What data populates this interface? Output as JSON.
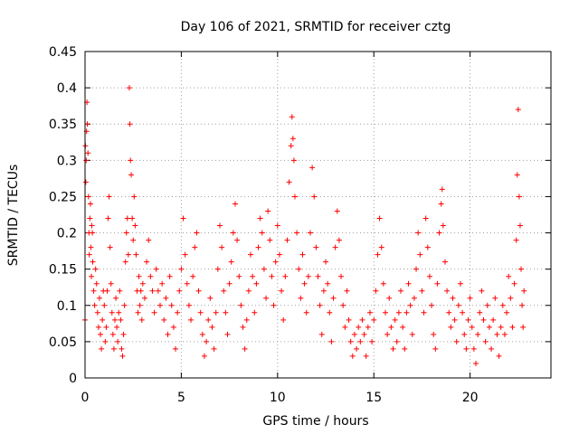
{
  "chart_data": {
    "type": "scatter",
    "title": "Day 106 of 2021, SRMTID for receiver cztg",
    "xlabel": "GPS time / hours",
    "ylabel": "SRMTID / TECUs",
    "xlim": [
      0,
      24.2
    ],
    "ylim": [
      0,
      0.45
    ],
    "xticks": [
      0,
      5,
      10,
      15,
      20
    ],
    "yticks": [
      0,
      0.05,
      0.1,
      0.15,
      0.2,
      0.25,
      0.3,
      0.35,
      0.4,
      0.45
    ],
    "xtick_labels": [
      "0",
      "5",
      "10",
      "15",
      "20"
    ],
    "ytick_labels": [
      "0",
      "0.05",
      "0.1",
      "0.15",
      "0.2",
      "0.25",
      "0.3",
      "0.35",
      "0.4",
      "0.45"
    ],
    "grid": true,
    "marker": "+",
    "color": "#ff0000",
    "series": [
      {
        "name": "SRMTID",
        "points": [
          [
            0.0,
            0.08
          ],
          [
            0.02,
            0.32
          ],
          [
            0.04,
            0.27
          ],
          [
            0.06,
            0.3
          ],
          [
            0.08,
            0.34
          ],
          [
            0.1,
            0.38
          ],
          [
            0.12,
            0.35
          ],
          [
            0.15,
            0.31
          ],
          [
            0.18,
            0.25
          ],
          [
            0.2,
            0.2
          ],
          [
            0.22,
            0.17
          ],
          [
            0.25,
            0.22
          ],
          [
            0.28,
            0.24
          ],
          [
            0.3,
            0.18
          ],
          [
            0.33,
            0.14
          ],
          [
            0.35,
            0.21
          ],
          [
            0.38,
            0.2
          ],
          [
            0.4,
            0.16
          ],
          [
            0.45,
            0.12
          ],
          [
            0.5,
            0.1
          ],
          [
            0.55,
            0.15
          ],
          [
            0.6,
            0.13
          ],
          [
            0.65,
            0.09
          ],
          [
            0.7,
            0.07
          ],
          [
            0.75,
            0.11
          ],
          [
            0.8,
            0.06
          ],
          [
            0.85,
            0.04
          ],
          [
            0.9,
            0.08
          ],
          [
            0.95,
            0.12
          ],
          [
            1.0,
            0.1
          ],
          [
            1.05,
            0.05
          ],
          [
            1.1,
            0.07
          ],
          [
            1.15,
            0.12
          ],
          [
            1.2,
            0.22
          ],
          [
            1.25,
            0.25
          ],
          [
            1.3,
            0.18
          ],
          [
            1.35,
            0.13
          ],
          [
            1.4,
            0.09
          ],
          [
            1.45,
            0.06
          ],
          [
            1.5,
            0.04
          ],
          [
            1.55,
            0.08
          ],
          [
            1.6,
            0.11
          ],
          [
            1.65,
            0.07
          ],
          [
            1.7,
            0.05
          ],
          [
            1.75,
            0.09
          ],
          [
            1.8,
            0.12
          ],
          [
            1.85,
            0.08
          ],
          [
            1.9,
            0.04
          ],
          [
            1.95,
            0.03
          ],
          [
            2.0,
            0.06
          ],
          [
            2.05,
            0.1
          ],
          [
            2.1,
            0.16
          ],
          [
            2.15,
            0.2
          ],
          [
            2.2,
            0.22
          ],
          [
            2.25,
            0.17
          ],
          [
            2.3,
            0.4
          ],
          [
            2.33,
            0.35
          ],
          [
            2.36,
            0.3
          ],
          [
            2.4,
            0.28
          ],
          [
            2.45,
            0.22
          ],
          [
            2.5,
            0.19
          ],
          [
            2.55,
            0.25
          ],
          [
            2.6,
            0.21
          ],
          [
            2.65,
            0.17
          ],
          [
            2.7,
            0.12
          ],
          [
            2.75,
            0.09
          ],
          [
            2.8,
            0.14
          ],
          [
            2.85,
            0.1
          ],
          [
            2.9,
            0.12
          ],
          [
            2.95,
            0.08
          ],
          [
            3.0,
            0.13
          ],
          [
            3.1,
            0.11
          ],
          [
            3.2,
            0.16
          ],
          [
            3.3,
            0.19
          ],
          [
            3.4,
            0.14
          ],
          [
            3.5,
            0.12
          ],
          [
            3.6,
            0.09
          ],
          [
            3.7,
            0.15
          ],
          [
            3.8,
            0.12
          ],
          [
            3.9,
            0.1
          ],
          [
            4.0,
            0.13
          ],
          [
            4.1,
            0.08
          ],
          [
            4.2,
            0.11
          ],
          [
            4.3,
            0.06
          ],
          [
            4.4,
            0.14
          ],
          [
            4.5,
            0.1
          ],
          [
            4.6,
            0.07
          ],
          [
            4.7,
            0.04
          ],
          [
            4.8,
            0.09
          ],
          [
            4.9,
            0.12
          ],
          [
            5.0,
            0.15
          ],
          [
            5.1,
            0.22
          ],
          [
            5.2,
            0.17
          ],
          [
            5.3,
            0.13
          ],
          [
            5.4,
            0.1
          ],
          [
            5.5,
            0.08
          ],
          [
            5.6,
            0.14
          ],
          [
            5.7,
            0.18
          ],
          [
            5.8,
            0.2
          ],
          [
            5.9,
            0.12
          ],
          [
            6.0,
            0.09
          ],
          [
            6.1,
            0.06
          ],
          [
            6.2,
            0.03
          ],
          [
            6.3,
            0.05
          ],
          [
            6.4,
            0.08
          ],
          [
            6.5,
            0.11
          ],
          [
            6.6,
            0.07
          ],
          [
            6.7,
            0.04
          ],
          [
            6.8,
            0.09
          ],
          [
            6.9,
            0.15
          ],
          [
            7.0,
            0.21
          ],
          [
            7.1,
            0.18
          ],
          [
            7.2,
            0.12
          ],
          [
            7.3,
            0.09
          ],
          [
            7.4,
            0.06
          ],
          [
            7.5,
            0.13
          ],
          [
            7.6,
            0.16
          ],
          [
            7.7,
            0.2
          ],
          [
            7.8,
            0.24
          ],
          [
            7.9,
            0.19
          ],
          [
            8.0,
            0.14
          ],
          [
            8.1,
            0.1
          ],
          [
            8.2,
            0.07
          ],
          [
            8.3,
            0.04
          ],
          [
            8.4,
            0.08
          ],
          [
            8.5,
            0.12
          ],
          [
            8.6,
            0.17
          ],
          [
            8.7,
            0.14
          ],
          [
            8.8,
            0.09
          ],
          [
            8.9,
            0.13
          ],
          [
            9.0,
            0.18
          ],
          [
            9.1,
            0.22
          ],
          [
            9.2,
            0.2
          ],
          [
            9.3,
            0.15
          ],
          [
            9.4,
            0.11
          ],
          [
            9.5,
            0.23
          ],
          [
            9.6,
            0.19
          ],
          [
            9.7,
            0.14
          ],
          [
            9.8,
            0.1
          ],
          [
            9.9,
            0.16
          ],
          [
            10.0,
            0.21
          ],
          [
            10.1,
            0.17
          ],
          [
            10.2,
            0.12
          ],
          [
            10.3,
            0.08
          ],
          [
            10.4,
            0.14
          ],
          [
            10.5,
            0.19
          ],
          [
            10.6,
            0.27
          ],
          [
            10.7,
            0.32
          ],
          [
            10.75,
            0.36
          ],
          [
            10.8,
            0.33
          ],
          [
            10.85,
            0.3
          ],
          [
            10.9,
            0.25
          ],
          [
            11.0,
            0.2
          ],
          [
            11.1,
            0.15
          ],
          [
            11.2,
            0.11
          ],
          [
            11.3,
            0.17
          ],
          [
            11.4,
            0.13
          ],
          [
            11.5,
            0.09
          ],
          [
            11.6,
            0.14
          ],
          [
            11.7,
            0.2
          ],
          [
            11.8,
            0.29
          ],
          [
            11.9,
            0.25
          ],
          [
            12.0,
            0.18
          ],
          [
            12.1,
            0.14
          ],
          [
            12.2,
            0.1
          ],
          [
            12.3,
            0.06
          ],
          [
            12.4,
            0.12
          ],
          [
            12.5,
            0.16
          ],
          [
            12.6,
            0.13
          ],
          [
            12.7,
            0.09
          ],
          [
            12.8,
            0.05
          ],
          [
            12.9,
            0.11
          ],
          [
            13.0,
            0.18
          ],
          [
            13.1,
            0.23
          ],
          [
            13.2,
            0.19
          ],
          [
            13.3,
            0.14
          ],
          [
            13.4,
            0.1
          ],
          [
            13.5,
            0.07
          ],
          [
            13.6,
            0.12
          ],
          [
            13.7,
            0.08
          ],
          [
            13.8,
            0.05
          ],
          [
            13.9,
            0.03
          ],
          [
            14.0,
            0.06
          ],
          [
            14.1,
            0.04
          ],
          [
            14.2,
            0.07
          ],
          [
            14.3,
            0.05
          ],
          [
            14.4,
            0.08
          ],
          [
            14.5,
            0.06
          ],
          [
            14.6,
            0.03
          ],
          [
            14.7,
            0.07
          ],
          [
            14.8,
            0.09
          ],
          [
            14.9,
            0.05
          ],
          [
            15.0,
            0.08
          ],
          [
            15.1,
            0.12
          ],
          [
            15.2,
            0.17
          ],
          [
            15.3,
            0.22
          ],
          [
            15.4,
            0.18
          ],
          [
            15.5,
            0.13
          ],
          [
            15.6,
            0.09
          ],
          [
            15.7,
            0.06
          ],
          [
            15.8,
            0.11
          ],
          [
            15.9,
            0.07
          ],
          [
            16.0,
            0.04
          ],
          [
            16.1,
            0.08
          ],
          [
            16.2,
            0.05
          ],
          [
            16.3,
            0.09
          ],
          [
            16.4,
            0.12
          ],
          [
            16.5,
            0.07
          ],
          [
            16.6,
            0.04
          ],
          [
            16.7,
            0.09
          ],
          [
            16.8,
            0.13
          ],
          [
            16.9,
            0.1
          ],
          [
            17.0,
            0.06
          ],
          [
            17.1,
            0.11
          ],
          [
            17.2,
            0.15
          ],
          [
            17.3,
            0.2
          ],
          [
            17.4,
            0.17
          ],
          [
            17.5,
            0.12
          ],
          [
            17.6,
            0.09
          ],
          [
            17.7,
            0.22
          ],
          [
            17.8,
            0.18
          ],
          [
            17.9,
            0.14
          ],
          [
            18.0,
            0.1
          ],
          [
            18.1,
            0.06
          ],
          [
            18.2,
            0.04
          ],
          [
            18.3,
            0.13
          ],
          [
            18.4,
            0.2
          ],
          [
            18.5,
            0.24
          ],
          [
            18.55,
            0.26
          ],
          [
            18.6,
            0.21
          ],
          [
            18.7,
            0.16
          ],
          [
            18.8,
            0.12
          ],
          [
            18.9,
            0.09
          ],
          [
            19.0,
            0.07
          ],
          [
            19.1,
            0.11
          ],
          [
            19.2,
            0.08
          ],
          [
            19.3,
            0.05
          ],
          [
            19.4,
            0.1
          ],
          [
            19.5,
            0.13
          ],
          [
            19.6,
            0.09
          ],
          [
            19.7,
            0.06
          ],
          [
            19.8,
            0.04
          ],
          [
            19.9,
            0.08
          ],
          [
            20.0,
            0.11
          ],
          [
            20.1,
            0.07
          ],
          [
            20.2,
            0.04
          ],
          [
            20.3,
            0.02
          ],
          [
            20.4,
            0.06
          ],
          [
            20.5,
            0.09
          ],
          [
            20.6,
            0.12
          ],
          [
            20.7,
            0.08
          ],
          [
            20.8,
            0.05
          ],
          [
            20.9,
            0.1
          ],
          [
            21.0,
            0.07
          ],
          [
            21.1,
            0.04
          ],
          [
            21.2,
            0.08
          ],
          [
            21.3,
            0.11
          ],
          [
            21.4,
            0.06
          ],
          [
            21.5,
            0.03
          ],
          [
            21.6,
            0.07
          ],
          [
            21.7,
            0.1
          ],
          [
            21.8,
            0.06
          ],
          [
            21.9,
            0.09
          ],
          [
            22.0,
            0.14
          ],
          [
            22.1,
            0.11
          ],
          [
            22.2,
            0.07
          ],
          [
            22.3,
            0.13
          ],
          [
            22.4,
            0.19
          ],
          [
            22.45,
            0.28
          ],
          [
            22.5,
            0.37
          ],
          [
            22.55,
            0.25
          ],
          [
            22.6,
            0.21
          ],
          [
            22.65,
            0.15
          ],
          [
            22.7,
            0.1
          ],
          [
            22.75,
            0.07
          ],
          [
            22.8,
            0.12
          ]
        ]
      }
    ]
  }
}
